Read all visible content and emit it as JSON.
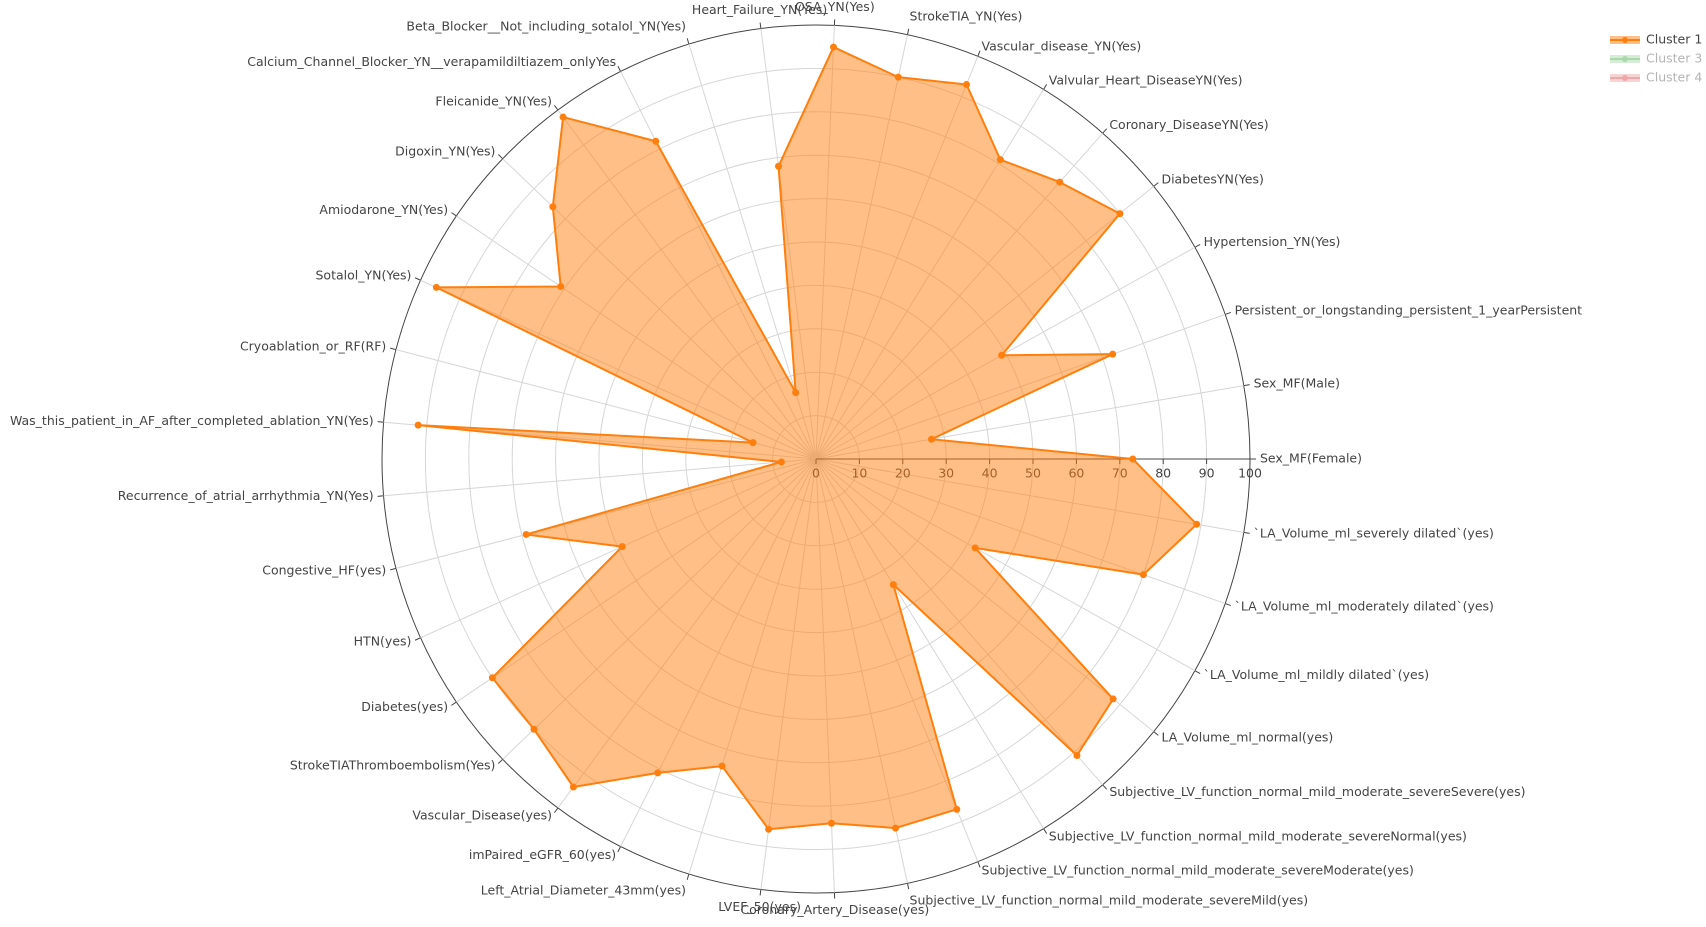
{
  "chart_data": {
    "type": "radar",
    "categories": [
      "Sex_MF(Female)",
      "Sex_MF(Male)",
      "Persistent_or_longstanding_persistent_1_yearPersistent",
      "Hypertension_YN(Yes)",
      "DiabetesYN(Yes)",
      "Coronary_DiseaseYN(Yes)",
      "Valvular_Heart_DiseaseYN(Yes)",
      "Vascular_disease_YN(Yes)",
      "StrokeTIA_YN(Yes)",
      "OSA_YN(Yes)",
      "Heart_Failure_YN(Yes)",
      "Beta_Blocker__Not_including_sotalol_YN(Yes)",
      "Calcium_Channel_Blocker_YN__verapamildiltiazem_onlyYes",
      "Fleicanide_YN(Yes)",
      "Digoxin_YN(Yes)",
      "Amiodarone_YN(Yes)",
      "Sotalol_YN(Yes)",
      "Cryoablation_or_RF(RF)",
      "Was_this_patient_in_AF_after_completed_ablation_YN(Yes)",
      "Recurrence_of_atrial_arrhythmia_YN(Yes)",
      "Congestive_HF(yes)",
      "HTN(yes)",
      "Diabetes(yes)",
      "StrokeTIAThromboembolism(Yes)",
      "Vascular_Disease(yes)",
      "imPaired_eGFR_60(yes)",
      "Left_Atrial_Diameter_43mm(yes)",
      "LVEF_50(yes)",
      "Coronary_Artery_Disease(yes)",
      "Subjective_LV_function_normal_mild_moderate_severeMild(yes)",
      "Subjective_LV_function_normal_mild_moderate_severeModerate(yes)",
      "Subjective_LV_function_normal_mild_moderate_severeNormal(yes)",
      "Subjective_LV_function_normal_mild_moderate_severeSevere(yes)",
      "LA_Volume_ml_normal(yes)",
      "`LA_Volume_ml_mildly dilated`(yes)",
      "`LA_Volume_ml_moderately dilated`(yes)",
      "`LA_Volume_ml_severely dilated`(yes)"
    ],
    "series": [
      {
        "name": "Cluster 1",
        "color": "#ff7f0e",
        "values": [
          73,
          27,
          72.5,
          49,
          90,
          85,
          81,
          93,
          90,
          95,
          68,
          16,
          82,
          98,
          84,
          71,
          96,
          15,
          92,
          8,
          69,
          49,
          90,
          90,
          94,
          81,
          74,
          86,
          84,
          87,
          87,
          34,
          91,
          88,
          42,
          80,
          89
        ]
      },
      {
        "name": "Cluster 3",
        "color": "#2ca02c",
        "visible": "legendonly"
      },
      {
        "name": "Cluster 4",
        "color": "#d62728",
        "visible": "legendonly"
      }
    ],
    "rlim": [
      0,
      100
    ],
    "rticks": [
      0,
      10,
      20,
      30,
      40,
      50,
      60,
      70,
      80,
      90,
      100
    ],
    "grid": true
  }
}
